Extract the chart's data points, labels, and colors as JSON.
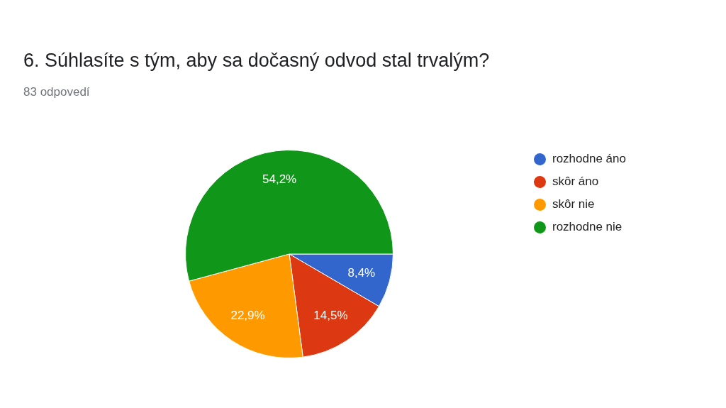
{
  "chart_data": {
    "type": "pie",
    "title": "6. Súhlasíte s tým, aby sa dočasný odvod stal trvalým?",
    "subtitle": "83 odpovedí",
    "categories": [
      "rozhodne áno",
      "skôr áno",
      "skôr nie",
      "rozhodne nie"
    ],
    "values": [
      8.4,
      14.5,
      22.9,
      54.2
    ],
    "colors": [
      "#3366cc",
      "#dc3912",
      "#ff9900",
      "#109618"
    ],
    "value_labels": [
      "8,4%",
      "14,5%",
      "22,9%",
      "54,2%"
    ],
    "legend": "right"
  }
}
